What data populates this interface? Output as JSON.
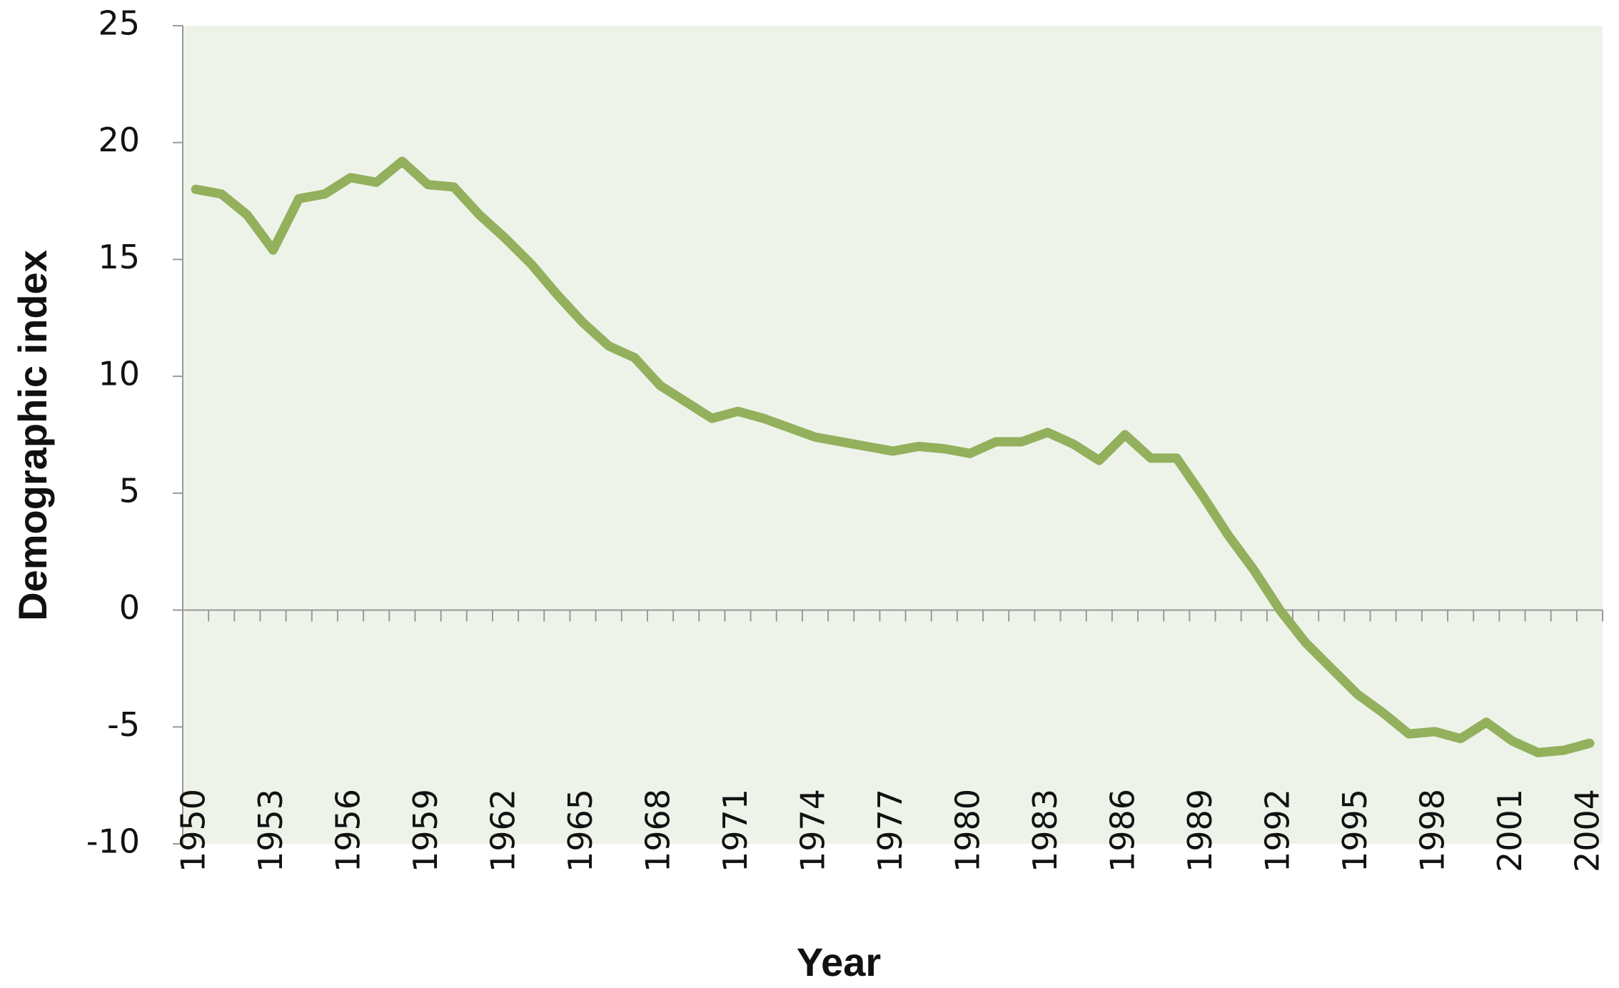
{
  "chart_data": {
    "type": "line",
    "x_label": "Year",
    "y_label": "Demographic index",
    "x": [
      1950,
      1951,
      1952,
      1953,
      1954,
      1955,
      1956,
      1957,
      1958,
      1959,
      1960,
      1961,
      1962,
      1963,
      1964,
      1965,
      1966,
      1967,
      1968,
      1969,
      1970,
      1971,
      1972,
      1973,
      1974,
      1975,
      1976,
      1977,
      1978,
      1979,
      1980,
      1981,
      1982,
      1983,
      1984,
      1985,
      1986,
      1987,
      1988,
      1989,
      1990,
      1991,
      1992,
      1993,
      1994,
      1995,
      1996,
      1997,
      1998,
      1999,
      2000,
      2001,
      2002,
      2003,
      2004
    ],
    "series": [
      {
        "name": "Demographic index",
        "color": "#93b05c",
        "values": [
          18.0,
          17.8,
          16.9,
          15.4,
          17.6,
          17.8,
          18.5,
          18.3,
          19.2,
          18.2,
          18.1,
          16.9,
          15.9,
          14.8,
          13.5,
          12.3,
          11.3,
          10.8,
          9.6,
          8.9,
          8.2,
          8.5,
          8.2,
          7.8,
          7.4,
          7.2,
          7.0,
          6.8,
          7.0,
          6.9,
          6.7,
          7.2,
          7.2,
          7.6,
          7.1,
          6.4,
          7.5,
          6.5,
          6.5,
          4.9,
          3.2,
          1.7,
          0.0,
          -1.4,
          -2.5,
          -3.6,
          -4.4,
          -5.3,
          -5.2,
          -5.5,
          -4.8,
          -5.6,
          -6.1,
          -6.0,
          -5.7
        ]
      }
    ],
    "xlim": [
      1949.5,
      2004.5
    ],
    "xticks": [
      1950,
      1953,
      1956,
      1959,
      1962,
      1965,
      1968,
      1971,
      1974,
      1977,
      1980,
      1983,
      1986,
      1989,
      1992,
      1995,
      1998,
      2001,
      2004
    ],
    "ylim": [
      -10,
      25
    ],
    "yticks": [
      -10,
      -5,
      0,
      5,
      10,
      15,
      20,
      25
    ],
    "background": "#eef3ea"
  }
}
